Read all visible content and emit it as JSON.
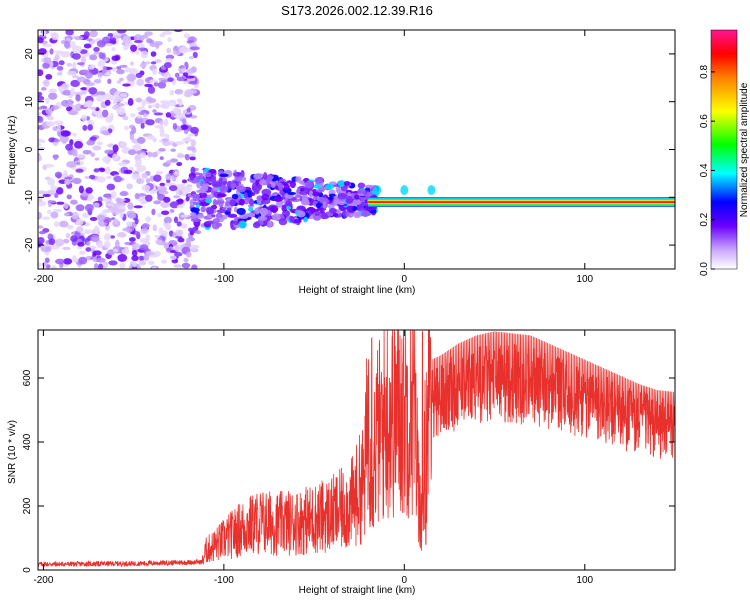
{
  "title": "S173.2026.002.12.39.R16",
  "chart_data": [
    {
      "type": "heatmap",
      "name": "spectrogram",
      "xlabel": "Height of straight line (km)",
      "ylabel": "Frequency (Hz)",
      "xlim": [
        -203,
        150
      ],
      "ylim": [
        -25,
        25
      ],
      "xticks": [
        -200,
        -100,
        0,
        100
      ],
      "xtick_labels": [
        "-200",
        "-100",
        "0",
        "100"
      ],
      "yticks": [
        -20,
        -10,
        0,
        10,
        20
      ],
      "ytick_labels": [
        "-20",
        "-10",
        "0",
        "10",
        "20"
      ],
      "colorbar": {
        "label": "Normalized spectral amplitude",
        "range": [
          0,
          0.97
        ],
        "ticks": [
          0.0,
          0.2,
          0.4,
          0.6,
          0.8
        ],
        "tick_labels": [
          "0.0",
          "0.2",
          "0.4",
          "0.6",
          "0.8"
        ],
        "colors": [
          "#f0e6ff",
          "#6a00ff",
          "#0000ff",
          "#00ffff",
          "#00ff00",
          "#ffff00",
          "#ff0000",
          "#ff1493"
        ]
      },
      "features": [
        {
          "label": "scattered noise",
          "x_range": [
            -203,
            -115
          ],
          "freq_range": [
            -25,
            25
          ],
          "amplitude": 0.05
        },
        {
          "label": "band onset",
          "x_range": [
            -118,
            -15
          ],
          "freq_range": [
            -17,
            -2
          ],
          "amplitude": 0.2
        },
        {
          "label": "carrier line",
          "x_range": [
            -20,
            150
          ],
          "frequency": -11,
          "amplitude": 0.9
        }
      ]
    },
    {
      "type": "line",
      "name": "snr",
      "xlabel": "Height of straight line (km)",
      "ylabel": "SNR (10 * v/v)",
      "xlim": [
        -203,
        150
      ],
      "ylim": [
        0,
        750
      ],
      "xticks": [
        -200,
        -100,
        0,
        100
      ],
      "xtick_labels": [
        "-200",
        "-100",
        "0",
        "100"
      ],
      "yticks": [
        0,
        200,
        400,
        600
      ],
      "ytick_labels": [
        "0",
        "200",
        "400",
        "600"
      ],
      "color": "#e8302c",
      "envelope": {
        "x": [
          -203,
          -150,
          -112,
          -110,
          -100,
          -90,
          -80,
          -70,
          -60,
          -50,
          -40,
          -30,
          -22,
          -20,
          -18,
          -15,
          -12,
          -10,
          -5,
          0,
          5,
          10,
          12,
          15,
          20,
          30,
          40,
          50,
          60,
          70,
          80,
          90,
          100,
          110,
          120,
          130,
          140,
          150
        ],
        "y": [
          18,
          20,
          25,
          60,
          95,
          130,
          150,
          145,
          150,
          160,
          175,
          200,
          280,
          500,
          330,
          420,
          450,
          480,
          500,
          500,
          520,
          100,
          450,
          520,
          530,
          560,
          580,
          590,
          585,
          580,
          560,
          540,
          520,
          500,
          480,
          460,
          445,
          440
        ]
      },
      "notable_peaks": [
        {
          "x": -18,
          "y": 725
        },
        {
          "x": 10,
          "y": 745
        },
        {
          "x": 12,
          "y": 80
        }
      ]
    }
  ]
}
